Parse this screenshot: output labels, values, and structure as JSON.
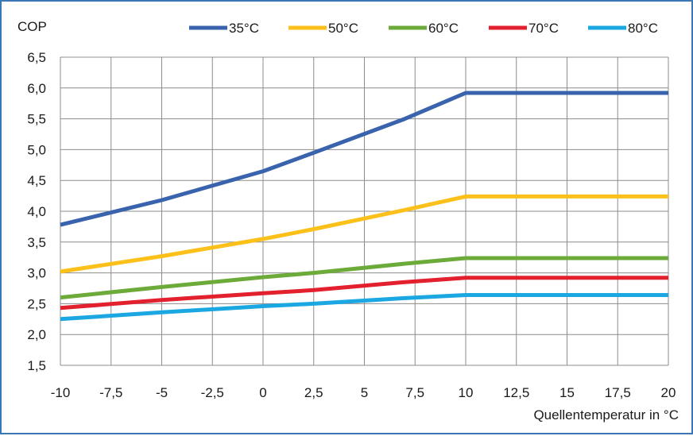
{
  "chart_data": {
    "type": "line",
    "title": "",
    "ylabel": "COP",
    "xlabel": "Quellentemperatur in °C",
    "x": [
      -10,
      -5,
      0,
      2.5,
      7,
      10,
      20
    ],
    "xlim": [
      -10,
      20
    ],
    "ylim": [
      1.5,
      6.5
    ],
    "xticks": [
      "-10",
      "-7,5",
      "-5",
      "-2,5",
      "0",
      "2,5",
      "5",
      "7,5",
      "10",
      "12,5",
      "15",
      "17,5",
      "20"
    ],
    "yticks": [
      "1,5",
      "2,0",
      "2,5",
      "3,0",
      "3,5",
      "4,0",
      "4,5",
      "5,0",
      "5,5",
      "6,0",
      "6,5"
    ],
    "grid": true,
    "legend": "top",
    "series": [
      {
        "name": "35°C",
        "color": "#3a63ad",
        "values": [
          3.78,
          4.18,
          4.65,
          4.95,
          5.5,
          5.92,
          5.92
        ]
      },
      {
        "name": "50°C",
        "color": "#fcc01a",
        "values": [
          3.02,
          3.27,
          3.55,
          3.71,
          4.02,
          4.24,
          4.24
        ]
      },
      {
        "name": "60°C",
        "color": "#6cab3a",
        "values": [
          2.6,
          2.77,
          2.93,
          3.0,
          3.15,
          3.24,
          3.24
        ]
      },
      {
        "name": "70°C",
        "color": "#e3202d",
        "values": [
          2.43,
          2.56,
          2.67,
          2.72,
          2.85,
          2.92,
          2.92
        ]
      },
      {
        "name": "80°C",
        "color": "#1ba7e1",
        "values": [
          2.25,
          2.36,
          2.46,
          2.5,
          2.59,
          2.64,
          2.64
        ]
      }
    ]
  }
}
